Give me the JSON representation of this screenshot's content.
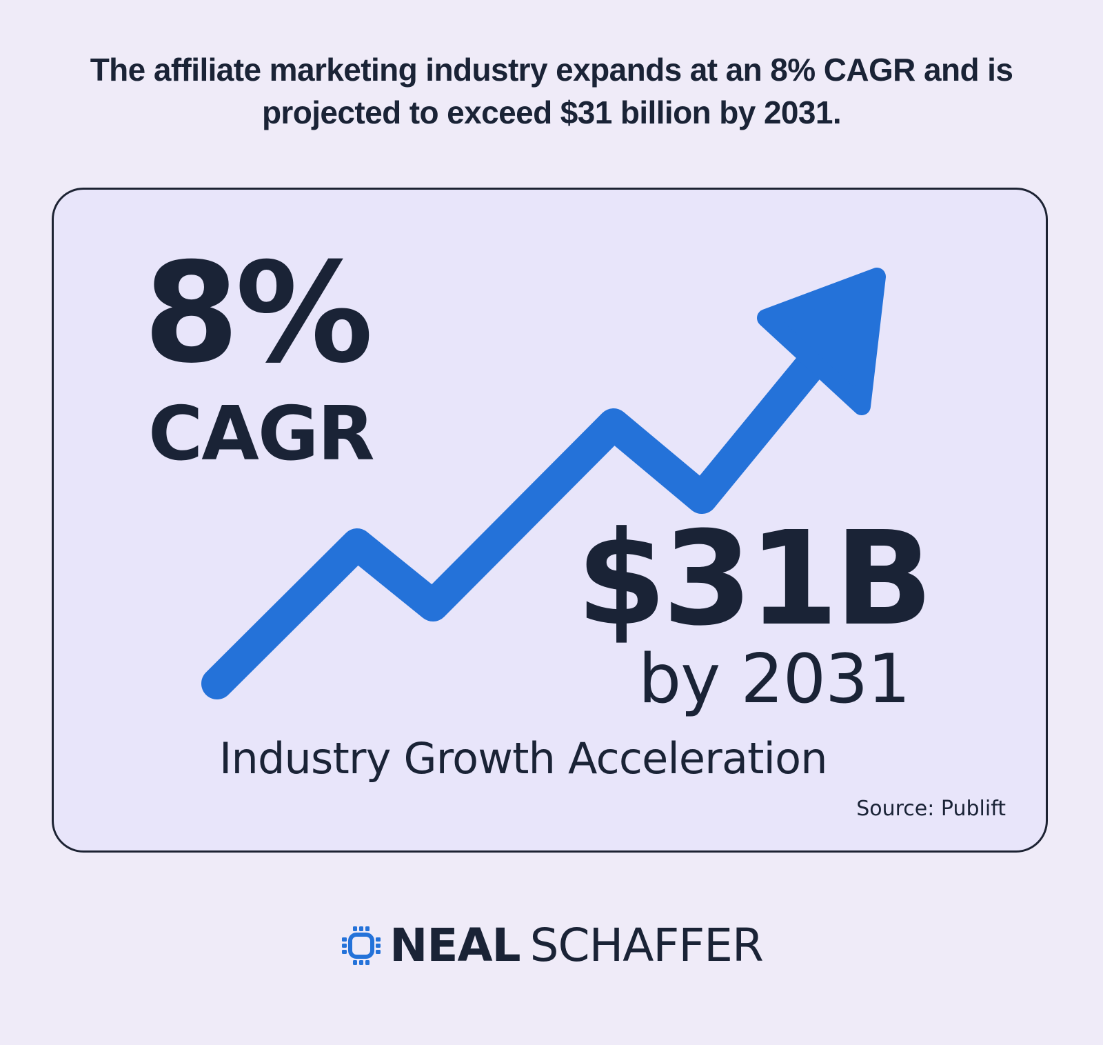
{
  "headline": {
    "line1": "The affiliate marketing industry expands at an 8% CAGR and is",
    "line2": "projected to exceed $31 billion by 2031."
  },
  "card": {
    "cagr_value": "8%",
    "cagr_label": "CAGR",
    "market_value": "$31B",
    "market_year": "by 2031",
    "subtitle": "Industry Growth Acceleration",
    "source": "Source: Publift",
    "arrow_icon": "trending-up-arrow-icon"
  },
  "brand": {
    "first": "NEAL",
    "last": "SCHAFFER",
    "logo_icon": "chip-logo-icon"
  },
  "colors": {
    "background": "#efebf8",
    "card_background": "#e8e5fa",
    "card_border": "#1d2333",
    "text": "#1a2336",
    "accent": "#2472d9"
  }
}
